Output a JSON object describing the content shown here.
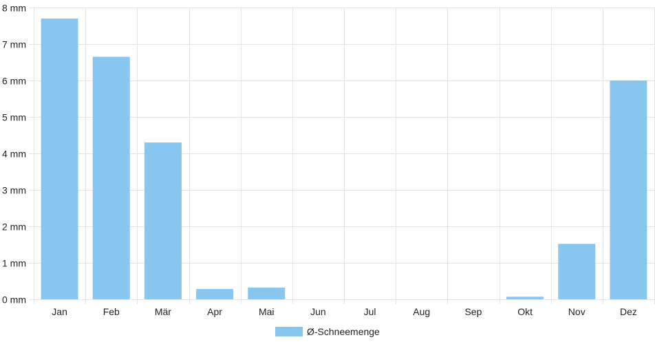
{
  "chart_data": {
    "type": "bar",
    "categories": [
      "Jan",
      "Feb",
      "Mär",
      "Apr",
      "Mai",
      "Jun",
      "Jul",
      "Aug",
      "Sep",
      "Okt",
      "Nov",
      "Dez"
    ],
    "series": [
      {
        "name": "Ø-Schneemenge",
        "values": [
          7.7,
          6.65,
          4.3,
          0.28,
          0.32,
          0,
          0,
          0,
          0,
          0.07,
          1.52,
          6.0
        ]
      }
    ],
    "y_ticks": [
      "0 mm",
      "1 mm",
      "2 mm",
      "3 mm",
      "4 mm",
      "5 mm",
      "6 mm",
      "7 mm",
      "8 mm"
    ],
    "ylim": [
      0,
      8
    ],
    "grid": true,
    "legend_position": "bottom",
    "colors": {
      "bar": "#88c6f0",
      "grid": "#e4e4e4"
    }
  }
}
